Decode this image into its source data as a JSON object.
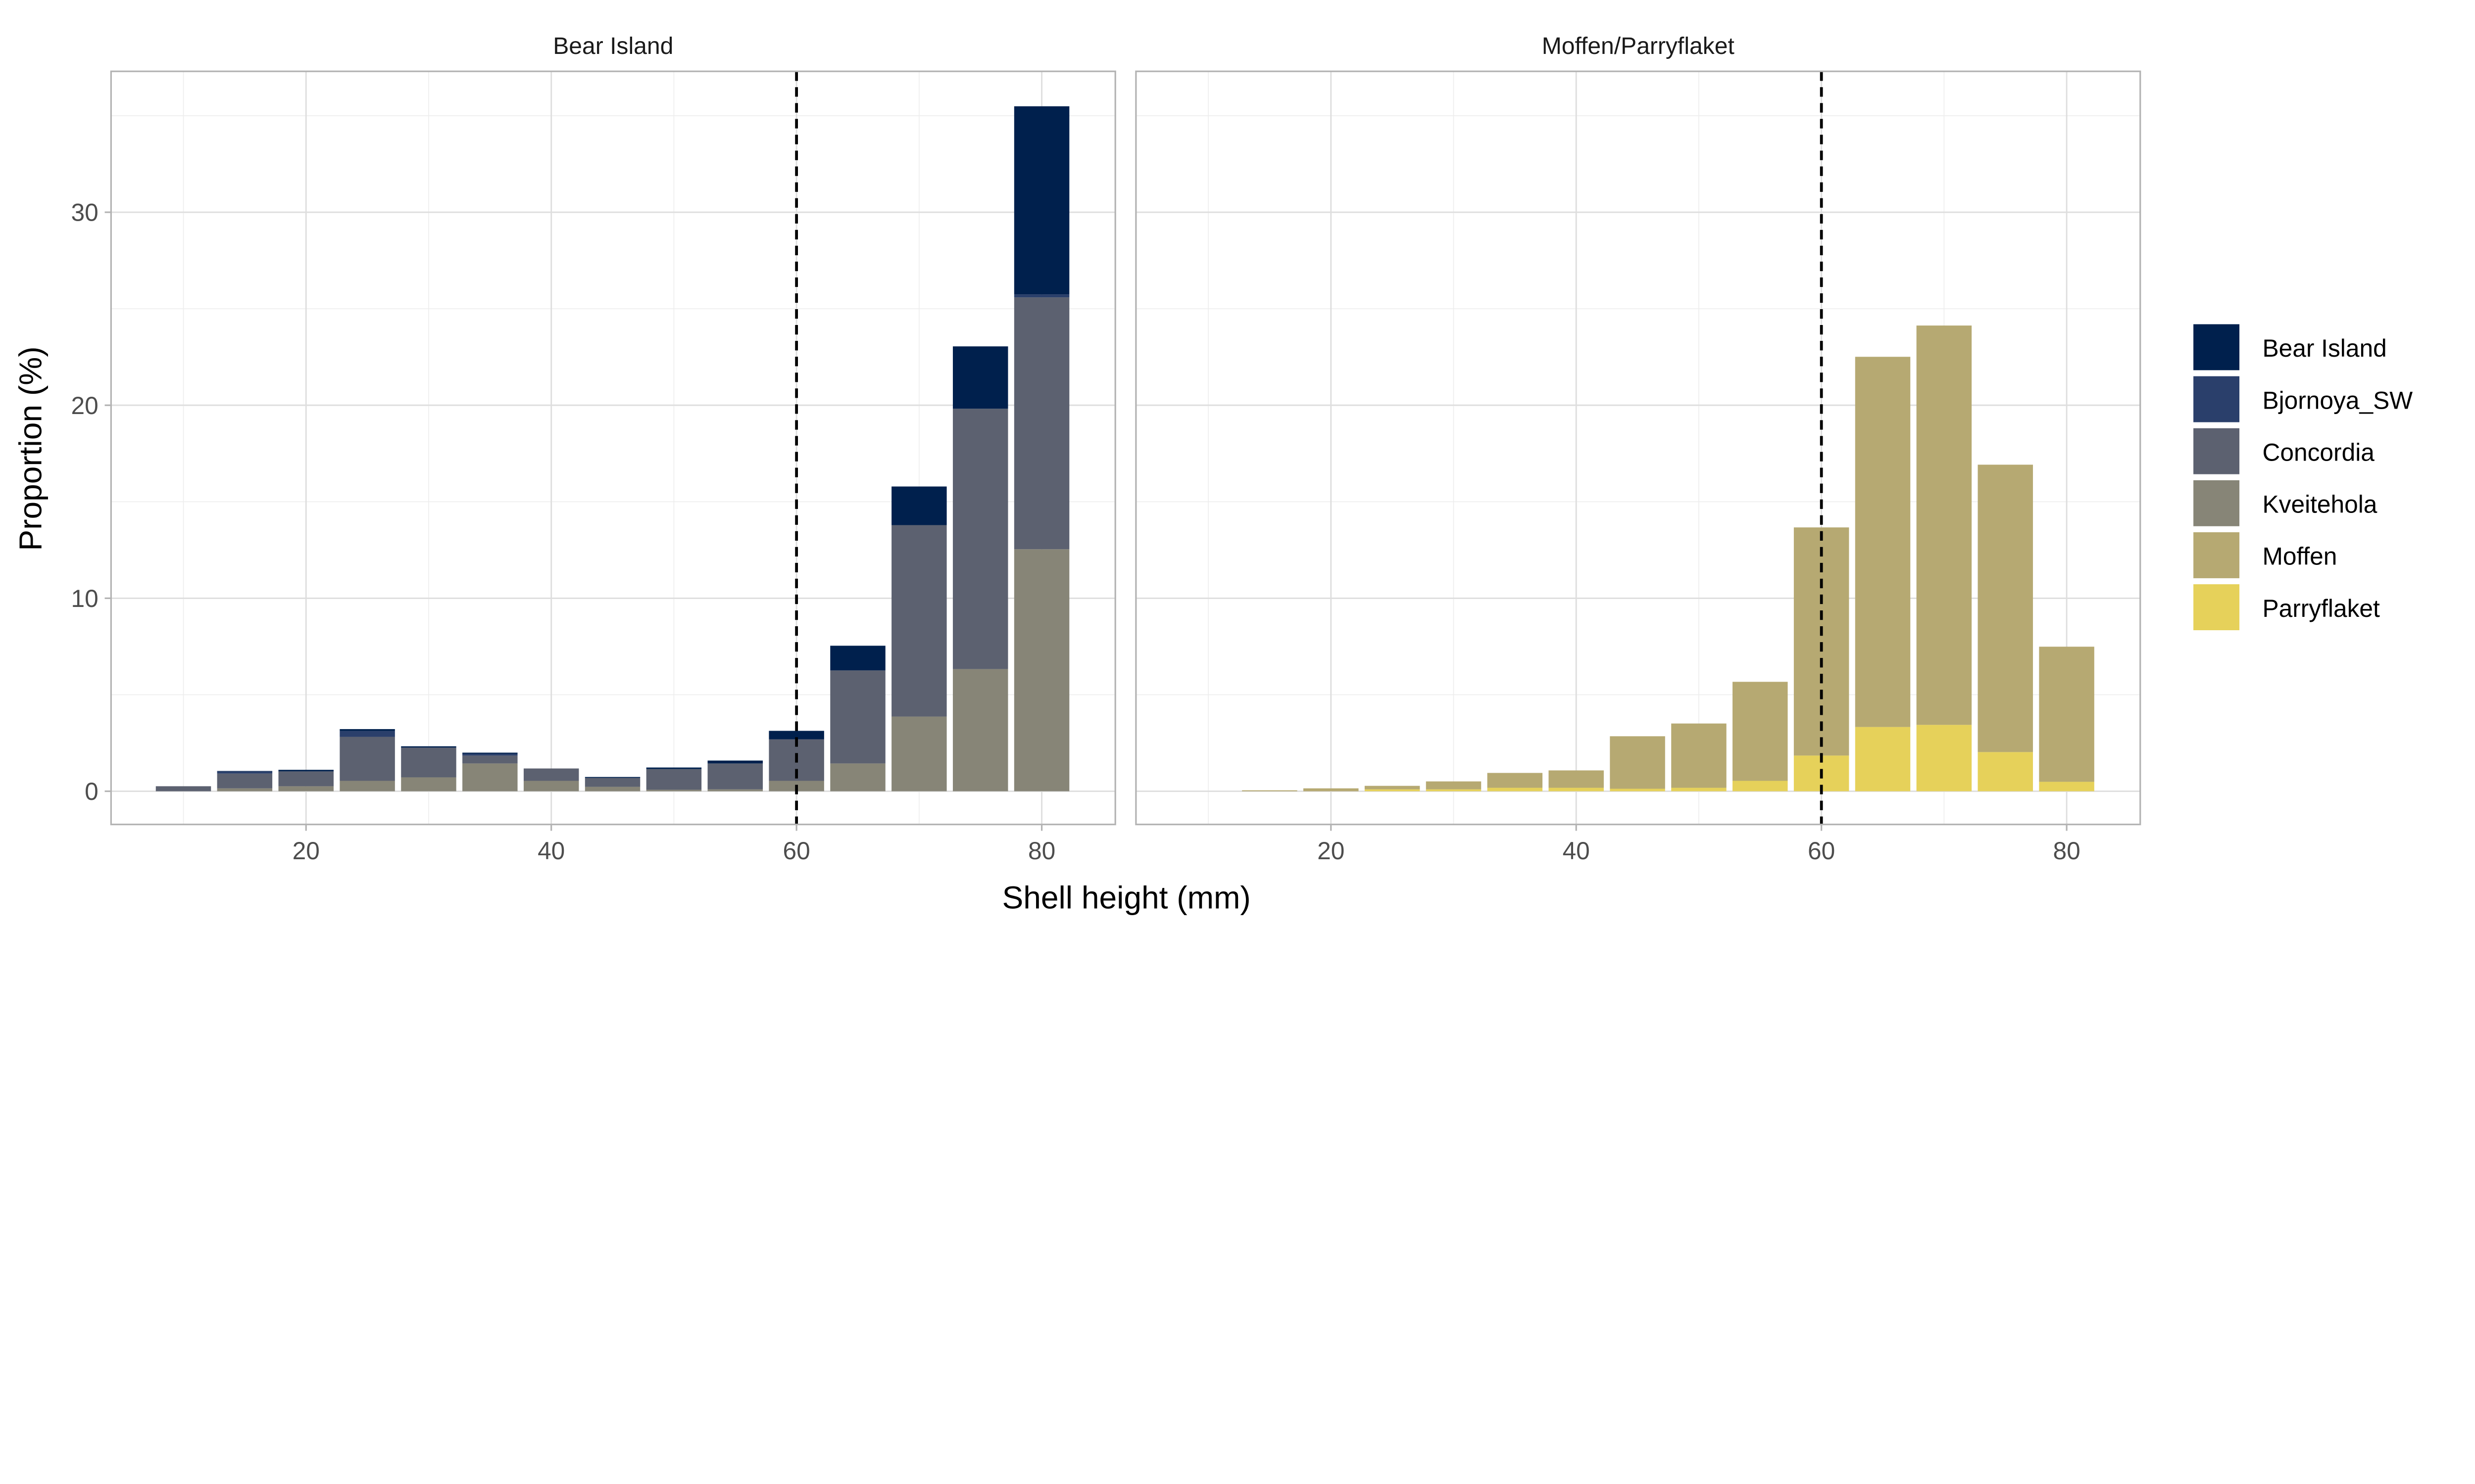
{
  "chart_data": {
    "type": "bar",
    "stacked": true,
    "xlabel": "Shell height (mm)",
    "ylabel": "Proportion (%)",
    "xlim": [
      4.1,
      86
    ],
    "ylim": [
      -1.72,
      37.3
    ],
    "x_ticks": [
      20,
      40,
      60,
      80
    ],
    "y_ticks": [
      0,
      10,
      20,
      30
    ],
    "grid": true,
    "reference_line": {
      "x": 60,
      "style": "dashed",
      "color": "#000000"
    },
    "legend": {
      "position": "right",
      "entries": [
        {
          "name": "Bear Island",
          "color": "#00204d"
        },
        {
          "name": "Bjornoya_SW",
          "color": "#2a3f6b"
        },
        {
          "name": "Concordia",
          "color": "#5c6170"
        },
        {
          "name": "Kveitehola",
          "color": "#878577"
        },
        {
          "name": "Moffen",
          "color": "#b6a972"
        },
        {
          "name": "Parryflaket",
          "color": "#e6d15a"
        }
      ]
    },
    "panels": [
      {
        "title": "Bear Island",
        "x": [
          10,
          15,
          20,
          25,
          30,
          35,
          40,
          45,
          50,
          55,
          60,
          65,
          70,
          75,
          80
        ],
        "series": [
          {
            "name": "Kveitehola",
            "values": [
              0,
              0.15,
              0.26,
              0.54,
              0.72,
              1.44,
              0.54,
              0.23,
              0.08,
              0.1,
              0.54,
              1.44,
              3.87,
              6.33,
              12.54
            ]
          },
          {
            "name": "Concordia",
            "values": [
              0.26,
              0.77,
              0.77,
              2.28,
              1.54,
              0.41,
              0.64,
              0.46,
              1.07,
              1.34,
              2.15,
              4.82,
              9.92,
              13.49,
              13.05
            ]
          },
          {
            "name": "Bjornoya_SW",
            "values": [
              0,
              0.1,
              0,
              0.3,
              0,
              0.1,
              0,
              0,
              0,
              0,
              0,
              0,
              0,
              0,
              0.15
            ]
          },
          {
            "name": "Bear Island",
            "values": [
              0,
              0.03,
              0.08,
              0.1,
              0.07,
              0.05,
              0,
              0.05,
              0.08,
              0.15,
              0.44,
              1.28,
              2.0,
              3.23,
              9.75
            ]
          }
        ]
      },
      {
        "title": "Moffen/Parryflaket",
        "x": [
          15,
          20,
          25,
          30,
          35,
          40,
          45,
          50,
          55,
          60,
          65,
          70,
          75,
          80
        ],
        "series": [
          {
            "name": "Parryflaket",
            "values": [
              0,
              0,
              0.1,
              0.1,
              0.18,
              0.18,
              0.13,
              0.18,
              0.54,
              1.85,
              3.33,
              3.44,
              2.03,
              0.49
            ]
          },
          {
            "name": "Moffen",
            "values": [
              0.05,
              0.15,
              0.18,
              0.41,
              0.77,
              0.9,
              2.72,
              3.33,
              5.13,
              11.82,
              19.18,
              20.69,
              14.89,
              7.0
            ]
          }
        ]
      }
    ]
  }
}
